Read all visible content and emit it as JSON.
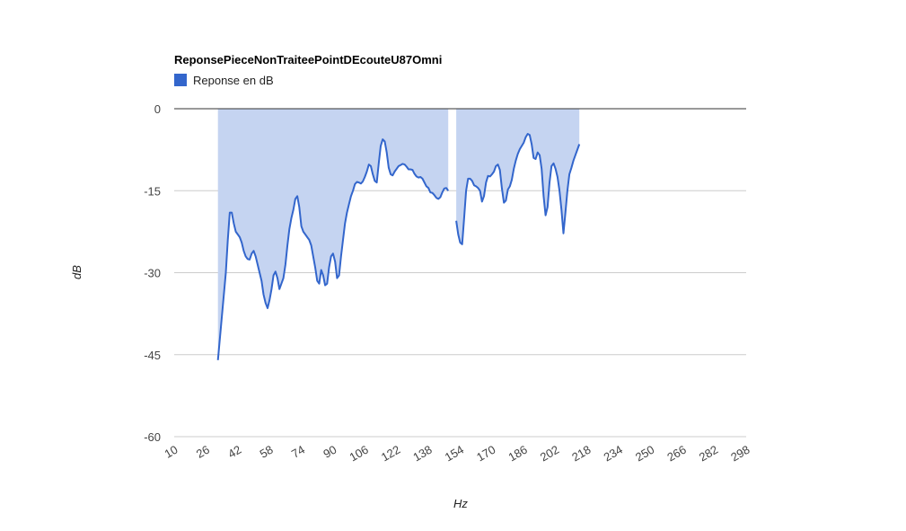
{
  "chart_data": {
    "type": "area",
    "title": "ReponsePieceNonTraiteePointDEcouteU87Omni",
    "xlabel": "Hz",
    "ylabel": "dB",
    "xlim": [
      10,
      298
    ],
    "ylim": [
      -60,
      0
    ],
    "x_ticks": [
      "10",
      "26",
      "42",
      "58",
      "74",
      "90",
      "106",
      "122",
      "138",
      "154",
      "170",
      "186",
      "202",
      "218",
      "234",
      "250",
      "266",
      "282",
      "298"
    ],
    "y_ticks": [
      "0",
      "-15",
      "-30",
      "-45",
      "-60"
    ],
    "grid": true,
    "legend": {
      "position": "top-left"
    },
    "colors": {
      "line": "#3366cc",
      "fill": "#c5d4f1",
      "grid": "#cccccc",
      "baseline": "#333333"
    },
    "series": [
      {
        "name": "Reponse en dB",
        "segments": [
          [
            [
              32,
              -46
            ],
            [
              34,
              -38
            ],
            [
              36,
              -30
            ],
            [
              37,
              -24
            ],
            [
              38,
              -19
            ],
            [
              39,
              -19
            ],
            [
              40,
              -21
            ],
            [
              41,
              -22.5
            ],
            [
              42,
              -23
            ],
            [
              43,
              -23.5
            ],
            [
              44,
              -24.5
            ],
            [
              45,
              -26
            ],
            [
              46,
              -27
            ],
            [
              47,
              -27.5
            ],
            [
              48,
              -27.6
            ],
            [
              49,
              -26.5
            ],
            [
              50,
              -26
            ],
            [
              51,
              -27
            ],
            [
              52,
              -28.5
            ],
            [
              53,
              -30
            ],
            [
              54,
              -31.5
            ],
            [
              55,
              -34
            ],
            [
              56,
              -35.5
            ],
            [
              57,
              -36.5
            ],
            [
              58,
              -35
            ],
            [
              59,
              -33
            ],
            [
              60,
              -30.5
            ],
            [
              61,
              -29.8
            ],
            [
              62,
              -31
            ],
            [
              63,
              -33
            ],
            [
              64,
              -32
            ],
            [
              65,
              -31
            ],
            [
              66,
              -28.5
            ],
            [
              67,
              -25
            ],
            [
              68,
              -22
            ],
            [
              69,
              -20
            ],
            [
              70,
              -18.5
            ],
            [
              71,
              -16.5
            ],
            [
              72,
              -16
            ],
            [
              73,
              -18
            ],
            [
              74,
              -21.5
            ],
            [
              75,
              -22.5
            ],
            [
              76,
              -23
            ],
            [
              77,
              -23.5
            ],
            [
              78,
              -24
            ],
            [
              79,
              -25
            ],
            [
              80,
              -27
            ],
            [
              81,
              -29
            ],
            [
              82,
              -31.5
            ],
            [
              83,
              -32
            ],
            [
              84,
              -29.5
            ],
            [
              85,
              -30.5
            ],
            [
              86,
              -32.3
            ],
            [
              87,
              -32
            ],
            [
              88,
              -29
            ],
            [
              89,
              -27
            ],
            [
              90,
              -26.5
            ],
            [
              91,
              -28
            ],
            [
              92,
              -31
            ],
            [
              93,
              -30.5
            ],
            [
              94,
              -27
            ],
            [
              95,
              -24
            ],
            [
              96,
              -21
            ],
            [
              97,
              -19
            ],
            [
              98,
              -17.5
            ],
            [
              99,
              -16
            ],
            [
              100,
              -15
            ],
            [
              101,
              -13.8
            ],
            [
              102,
              -13.4
            ],
            [
              103,
              -13.5
            ],
            [
              104,
              -13.7
            ],
            [
              105,
              -13.3
            ],
            [
              106,
              -12.5
            ],
            [
              107,
              -11.5
            ],
            [
              108,
              -10.2
            ],
            [
              109,
              -10.5
            ],
            [
              110,
              -12
            ],
            [
              111,
              -13.2
            ],
            [
              112,
              -13.5
            ],
            [
              113,
              -10
            ],
            [
              114,
              -6.8
            ],
            [
              115,
              -5.6
            ],
            [
              116,
              -6
            ],
            [
              117,
              -8
            ],
            [
              118,
              -10.8
            ],
            [
              119,
              -12
            ],
            [
              120,
              -12.2
            ],
            [
              121,
              -11.5
            ],
            [
              122,
              -11
            ],
            [
              123,
              -10.5
            ],
            [
              124,
              -10.3
            ],
            [
              125,
              -10.1
            ],
            [
              126,
              -10.2
            ],
            [
              127,
              -10.6
            ],
            [
              128,
              -11.1
            ],
            [
              129,
              -11.1
            ],
            [
              130,
              -11.2
            ],
            [
              131,
              -11.9
            ],
            [
              132,
              -12.4
            ],
            [
              133,
              -12.6
            ],
            [
              134,
              -12.5
            ],
            [
              135,
              -12.8
            ],
            [
              136,
              -13.5
            ],
            [
              137,
              -14.2
            ],
            [
              138,
              -14.5
            ],
            [
              139,
              -15.3
            ],
            [
              140,
              -15.4
            ],
            [
              141,
              -15.8
            ],
            [
              142,
              -16.3
            ],
            [
              143,
              -16.5
            ],
            [
              144,
              -16.2
            ],
            [
              145,
              -15.3
            ],
            [
              146,
              -14.6
            ],
            [
              147,
              -14.5
            ],
            [
              148,
              -15
            ]
          ],
          [
            [
              152,
              -20.5
            ],
            [
              153,
              -23
            ],
            [
              154,
              -24.5
            ],
            [
              155,
              -24.8
            ],
            [
              156,
              -20
            ],
            [
              157,
              -15
            ],
            [
              158,
              -12.8
            ],
            [
              159,
              -12.8
            ],
            [
              160,
              -13.2
            ],
            [
              161,
              -14
            ],
            [
              162,
              -14.2
            ],
            [
              163,
              -14.5
            ],
            [
              164,
              -15
            ],
            [
              165,
              -17
            ],
            [
              166,
              -16
            ],
            [
              167,
              -13.5
            ],
            [
              168,
              -12.3
            ],
            [
              169,
              -12.4
            ],
            [
              170,
              -12
            ],
            [
              171,
              -11.5
            ],
            [
              172,
              -10.5
            ],
            [
              173,
              -10.2
            ],
            [
              174,
              -11.2
            ],
            [
              175,
              -14.5
            ],
            [
              176,
              -17.2
            ],
            [
              177,
              -16.8
            ],
            [
              178,
              -14.8
            ],
            [
              179,
              -14.2
            ],
            [
              180,
              -13
            ],
            [
              181,
              -11
            ],
            [
              182,
              -9.5
            ],
            [
              183,
              -8.3
            ],
            [
              184,
              -7.4
            ],
            [
              185,
              -6.8
            ],
            [
              186,
              -6.2
            ],
            [
              187,
              -5.2
            ],
            [
              188,
              -4.6
            ],
            [
              189,
              -4.8
            ],
            [
              190,
              -6.5
            ],
            [
              191,
              -9
            ],
            [
              192,
              -9.2
            ],
            [
              193,
              -8
            ],
            [
              194,
              -8.5
            ],
            [
              195,
              -11
            ],
            [
              196,
              -16
            ],
            [
              197,
              -19.5
            ],
            [
              198,
              -18
            ],
            [
              199,
              -13.5
            ],
            [
              200,
              -10.5
            ],
            [
              201,
              -10
            ],
            [
              202,
              -11
            ],
            [
              203,
              -12.5
            ],
            [
              204,
              -15
            ],
            [
              205,
              -18.5
            ],
            [
              206,
              -22.8
            ],
            [
              207,
              -19
            ],
            [
              208,
              -15
            ],
            [
              209,
              -12
            ],
            [
              210,
              -10.8
            ],
            [
              211,
              -9.5
            ],
            [
              212,
              -8.5
            ],
            [
              213,
              -7.5
            ],
            [
              214,
              -6.5
            ]
          ]
        ]
      }
    ]
  }
}
